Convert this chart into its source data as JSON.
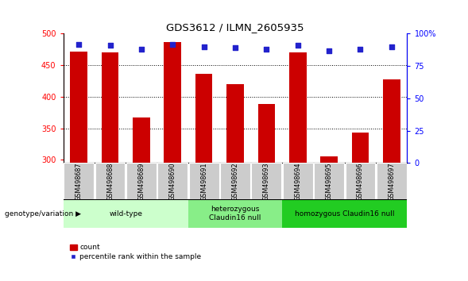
{
  "title": "GDS3612 / ILMN_2605935",
  "samples": [
    "GSM498687",
    "GSM498688",
    "GSM498689",
    "GSM498690",
    "GSM498691",
    "GSM498692",
    "GSM498693",
    "GSM498694",
    "GSM498695",
    "GSM498696",
    "GSM498697"
  ],
  "counts": [
    472,
    470,
    367,
    487,
    436,
    420,
    388,
    470,
    305,
    343,
    427
  ],
  "percentile_ranks": [
    92,
    91,
    88,
    92,
    90,
    89,
    88,
    91,
    87,
    88,
    90
  ],
  "y_min": 295,
  "y_max": 500,
  "y_ticks_left": [
    300,
    350,
    400,
    450,
    500
  ],
  "y_ticks_right": [
    0,
    25,
    50,
    75,
    100
  ],
  "bar_color": "#cc0000",
  "dot_color": "#2222cc",
  "groups": [
    {
      "label": "wild-type",
      "start": 0,
      "end": 3,
      "color": "#ccffcc"
    },
    {
      "label": "heterozygous\nClaudin16 null",
      "start": 4,
      "end": 6,
      "color": "#88ee88"
    },
    {
      "label": "homozygous Claudin16 null",
      "start": 7,
      "end": 10,
      "color": "#22cc22"
    }
  ],
  "group_label_prefix": "genotype/variation",
  "legend_count_label": "count",
  "legend_percentile_label": "percentile rank within the sample",
  "bar_width": 0.55,
  "xtick_bg": "#cccccc",
  "plot_bg": "#ffffff"
}
